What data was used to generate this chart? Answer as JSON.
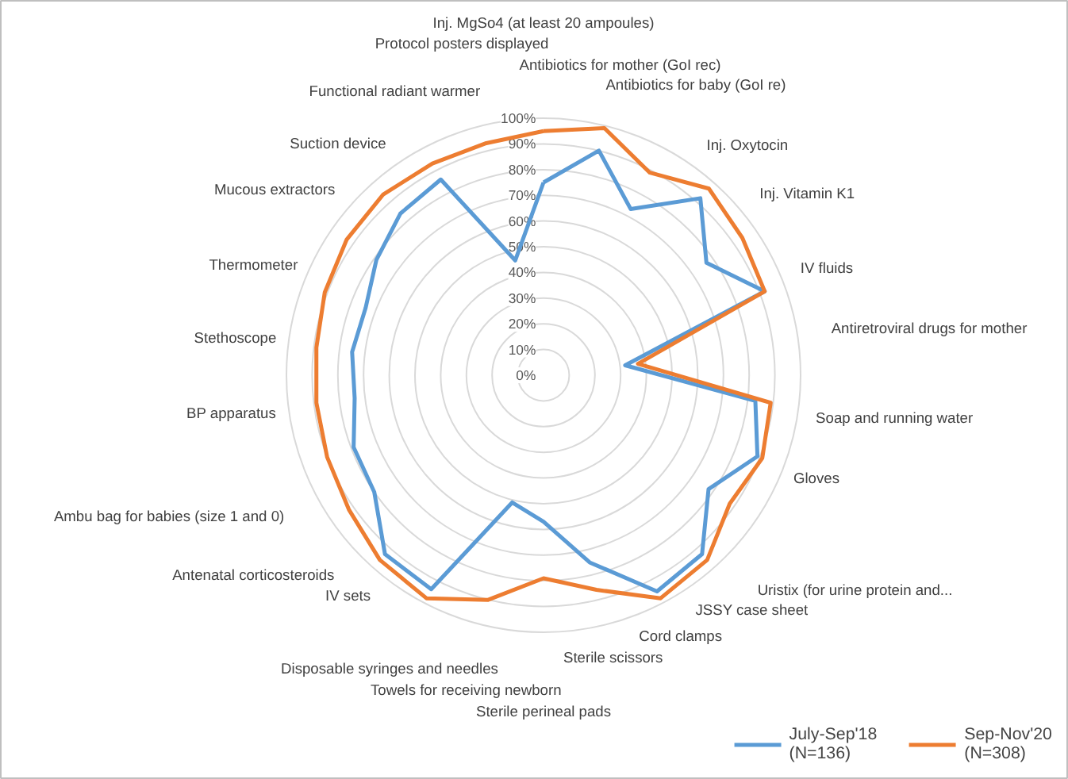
{
  "chart_data": {
    "type": "radar",
    "categories": [
      "Inj. MgSo4 (at least 20 ampoules)",
      "Antibiotics for mother (GoI rec)",
      "Antibiotics for baby (GoI re)",
      "Inj. Oxytocin",
      "Inj. Vitamin K1",
      "IV fluids",
      "Antiretroviral drugs for mother",
      "Soap and running water",
      "Gloves",
      "Uristix (for urine protein and...",
      "JSSY case sheet",
      "Cord clamps",
      "Sterile scissors",
      "Sterile perineal pads",
      "Towels for receiving newborn",
      "Disposable syringes and needles",
      "IV sets",
      "Antenatal corticosteroids",
      "Ambu bag for babies  (size 1 and 0)",
      "BP apparatus",
      "Stethoscope",
      "Thermometer",
      "Mucous extractors",
      "Suction device",
      "Functional radiant warmer",
      "Protocol posters displayed"
    ],
    "series": [
      {
        "name": "July-Sep'18\n(N=136)",
        "color": "#5b9bd5",
        "values": [
          75,
          90,
          73,
          92,
          77,
          92,
          32,
          83,
          89,
          78,
          93,
          95,
          75,
          57,
          51,
          94,
          93,
          80,
          79,
          74,
          75,
          74,
          79,
          84,
          86,
          46
        ]
      },
      {
        "name": "Sep-Nov'20\n(N=308)",
        "color": "#ed7d31",
        "values": [
          95,
          99,
          89,
          97,
          94,
          92,
          37,
          89,
          91,
          88,
          96,
          98,
          86,
          79,
          90,
          98,
          96,
          92,
          90,
          89,
          89,
          91,
          93,
          94,
          93,
          93
        ]
      }
    ],
    "ylim": [
      0,
      100
    ],
    "yticks": [
      {
        "value": 0,
        "label": "0%"
      },
      {
        "value": 10,
        "label": "10%"
      },
      {
        "value": 20,
        "label": "20%"
      },
      {
        "value": 30,
        "label": "30%"
      },
      {
        "value": 40,
        "label": "40%"
      },
      {
        "value": 50,
        "label": "50%"
      },
      {
        "value": 60,
        "label": "60%"
      },
      {
        "value": 70,
        "label": "70%"
      },
      {
        "value": 80,
        "label": "80%"
      },
      {
        "value": 90,
        "label": "90%"
      },
      {
        "value": 100,
        "label": "100%"
      }
    ],
    "grid": true,
    "legend": "bottom right",
    "marker": "none",
    "line_style": "solid"
  }
}
